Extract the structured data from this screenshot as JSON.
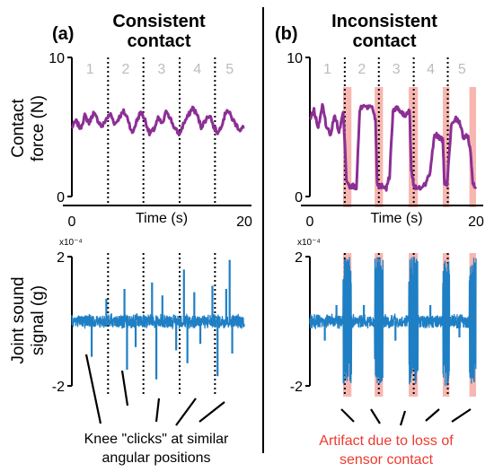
{
  "panels": [
    {
      "id": "a",
      "letter": "(a)",
      "title_lines": [
        "Consistent",
        "contact"
      ],
      "annotation_lines": [
        "Knee \"clicks\" at similar",
        "angular positions"
      ],
      "annotation_color": "#000000"
    },
    {
      "id": "b",
      "letter": "(b)",
      "title_lines": [
        "Inconsistent",
        "contact"
      ],
      "annotation_lines": [
        "Artifact due to loss of",
        "sensor contact"
      ],
      "annotation_color": "#ee3a2e"
    }
  ],
  "colors": {
    "force": "#8b2f94",
    "sound": "#1f7fc4",
    "highlight": "#f7b6b0",
    "segment_numbers": "#bcbcbc",
    "text": "#000000"
  },
  "chart_data": [
    {
      "type": "line",
      "panel": "a",
      "row": "force",
      "ylabel_lines": [
        "Contact",
        "force (N)"
      ],
      "xlabel": "Time (s)",
      "xlim": [
        0,
        20
      ],
      "ylim": [
        0,
        10
      ],
      "xticks": [
        0,
        20
      ],
      "yticks": [
        0,
        10
      ],
      "segment_boundaries": [
        4.2,
        8.3,
        12.5,
        16.6
      ],
      "segment_labels": [
        "1",
        "2",
        "3",
        "4",
        "5"
      ],
      "series": [
        {
          "x": [
            0,
            0.5,
            1,
            1.5,
            2,
            2.5,
            3,
            3.5,
            4,
            4.5,
            5,
            5.5,
            6,
            6.5,
            7,
            7.5,
            8,
            8.5,
            9,
            9.5,
            10,
            10.5,
            11,
            11.5,
            12,
            12.5,
            13,
            13.5,
            14,
            14.5,
            15,
            15.5,
            16,
            16.5,
            17,
            17.5,
            18,
            18.5,
            19,
            19.5,
            20
          ],
          "values": [
            5.0,
            5.4,
            4.9,
            5.8,
            5.3,
            6.0,
            5.5,
            5.0,
            5.6,
            5.9,
            5.2,
            5.7,
            6.1,
            5.6,
            4.5,
            5.4,
            6.1,
            5.5,
            4.5,
            4.8,
            5.6,
            5.2,
            6.2,
            5.5,
            4.8,
            4.5,
            5.3,
            5.8,
            6.4,
            5.9,
            5.0,
            5.5,
            5.9,
            4.9,
            4.6,
            5.4,
            6.3,
            5.7,
            5.2,
            4.8,
            5.0
          ]
        }
      ]
    },
    {
      "type": "line",
      "panel": "b",
      "row": "force",
      "xlabel": "Time (s)",
      "xlim": [
        0,
        20
      ],
      "ylim": [
        0,
        10
      ],
      "xticks": [
        0,
        20
      ],
      "yticks": [
        0,
        10
      ],
      "segment_boundaries": [
        4.2,
        8.3,
        12.5,
        16.6
      ],
      "segment_labels": [
        "1",
        "2",
        "3",
        "4",
        "5"
      ],
      "highlight_ranges": [
        [
          4.0,
          5.0
        ],
        [
          7.8,
          8.8
        ],
        [
          11.9,
          13.0
        ],
        [
          16.0,
          16.8
        ],
        [
          19.2,
          20.0
        ]
      ],
      "series": [
        {
          "x": [
            0,
            0.5,
            1,
            1.5,
            2,
            2.5,
            3,
            3.5,
            4,
            4.2,
            4.4,
            4.8,
            5.2,
            5.6,
            6,
            6.5,
            7,
            7.5,
            7.9,
            8.1,
            8.4,
            8.8,
            9.2,
            9.6,
            10,
            10.5,
            11,
            11.5,
            12,
            12.2,
            12.5,
            13,
            13.5,
            14,
            14.5,
            15,
            15.5,
            16,
            16.2,
            16.5,
            17,
            17.5,
            18,
            18.5,
            19,
            19.3,
            19.6,
            20
          ],
          "values": [
            5.5,
            6.2,
            4.9,
            6.6,
            5.0,
            4.5,
            5.9,
            4.6,
            6.0,
            4.0,
            1.2,
            0.6,
            0.8,
            0.5,
            6.2,
            6.6,
            6.4,
            6.5,
            5.5,
            1.0,
            0.7,
            0.8,
            0.6,
            1.5,
            6.1,
            6.4,
            6.0,
            5.8,
            6.2,
            2.0,
            0.8,
            0.5,
            0.7,
            1.0,
            1.8,
            4.5,
            4.3,
            4.0,
            1.0,
            0.8,
            5.0,
            5.7,
            5.3,
            4.2,
            4.4,
            3.5,
            1.0,
            0.7
          ]
        }
      ]
    },
    {
      "type": "line",
      "panel": "a",
      "row": "sound",
      "ylabel_lines": [
        "Joint sound",
        "signal (g)"
      ],
      "xlim": [
        0,
        20
      ],
      "ylim": [
        -2,
        2
      ],
      "yticks": [
        -2,
        2
      ],
      "y_multiplier": "x10⁻⁴",
      "segment_boundaries": [
        4.2,
        8.3,
        12.5,
        16.6
      ],
      "noise_amplitude": 0.25,
      "spikes": [
        {
          "x": 2.3,
          "value": -1.1
        },
        {
          "x": 4.0,
          "value": 0.7
        },
        {
          "x": 6.1,
          "value": 1.0
        },
        {
          "x": 6.4,
          "value": -1.5
        },
        {
          "x": 7.4,
          "value": -0.8
        },
        {
          "x": 9.3,
          "value": 1.2
        },
        {
          "x": 9.8,
          "value": -1.8
        },
        {
          "x": 10.5,
          "value": 0.8
        },
        {
          "x": 12.1,
          "value": -0.9
        },
        {
          "x": 13.0,
          "value": 1.6
        },
        {
          "x": 13.4,
          "value": -1.3
        },
        {
          "x": 14.2,
          "value": 0.9
        },
        {
          "x": 14.9,
          "value": -0.7
        },
        {
          "x": 16.3,
          "value": 1.1
        },
        {
          "x": 16.9,
          "value": -1.7
        },
        {
          "x": 17.9,
          "value": 1.0
        },
        {
          "x": 18.3,
          "value": 1.9
        },
        {
          "x": 18.6,
          "value": -1.0
        }
      ]
    },
    {
      "type": "line",
      "panel": "b",
      "row": "sound",
      "xlim": [
        0,
        20
      ],
      "ylim": [
        -2,
        2
      ],
      "yticks": [
        -2,
        2
      ],
      "y_multiplier": "x10⁻⁴",
      "segment_boundaries": [
        4.2,
        8.3,
        12.5,
        16.6
      ],
      "highlight_ranges": [
        [
          4.0,
          5.0
        ],
        [
          7.8,
          8.8
        ],
        [
          11.9,
          13.0
        ],
        [
          16.0,
          16.8
        ],
        [
          19.2,
          20.0
        ]
      ],
      "noise_amplitude": 0.25,
      "artifact_amplitude": 2.0,
      "spikes": [
        {
          "x": 1.8,
          "value": -0.6
        },
        {
          "x": 3.2,
          "value": 0.5
        },
        {
          "x": 6.5,
          "value": 0.5
        },
        {
          "x": 10.3,
          "value": -0.6
        },
        {
          "x": 14.5,
          "value": 0.5
        },
        {
          "x": 18.0,
          "value": -0.5
        }
      ]
    }
  ]
}
